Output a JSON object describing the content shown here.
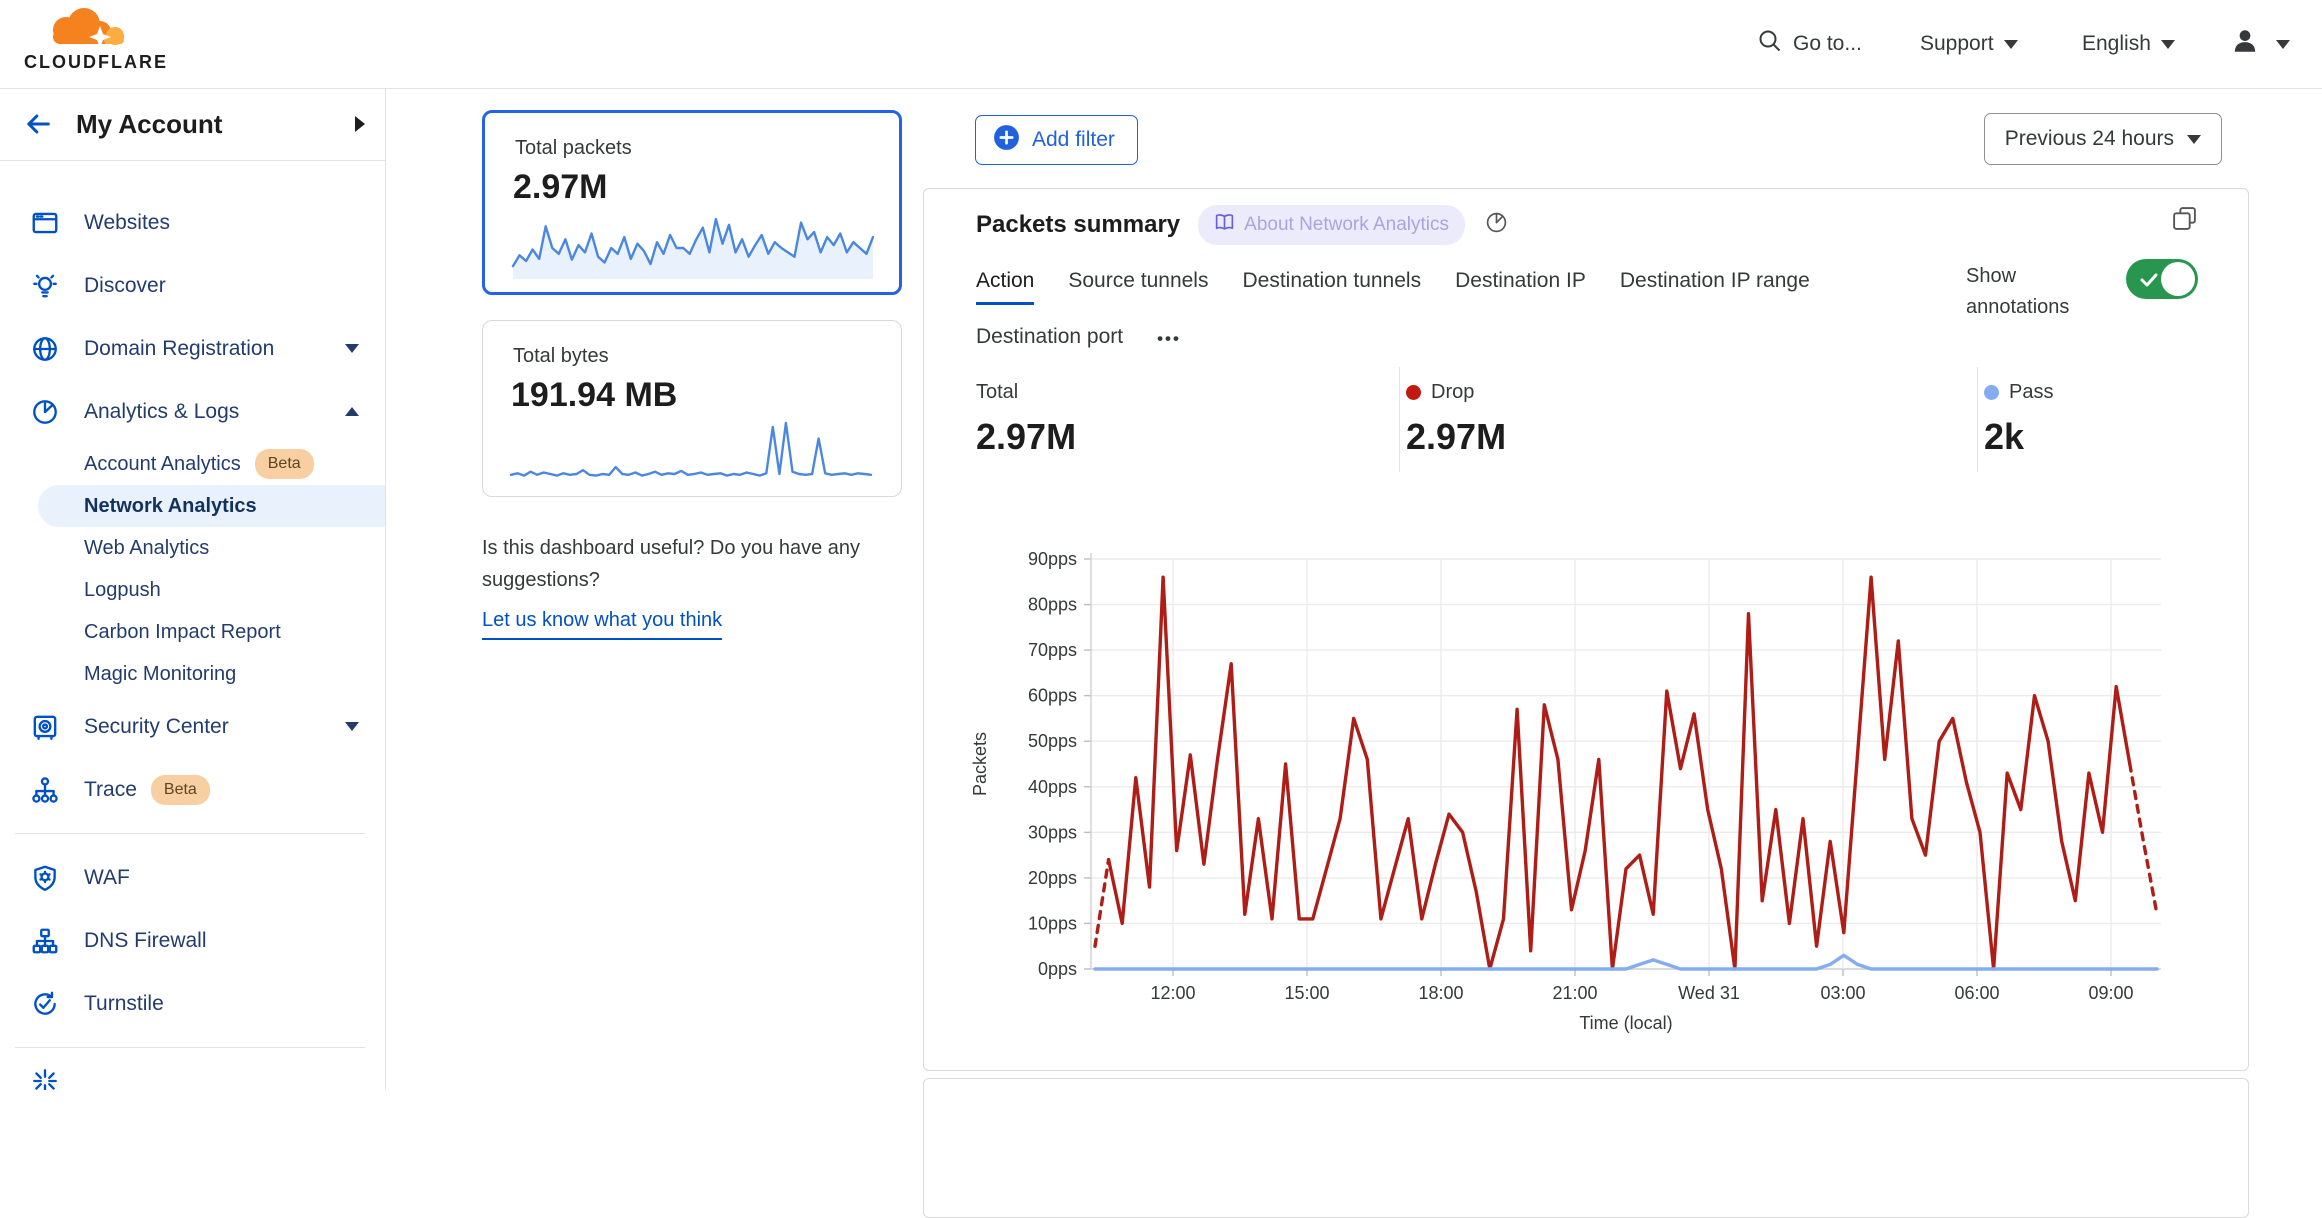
{
  "header": {
    "logo_text": "CLOUDFLARE",
    "goto": "Go to...",
    "support": "Support",
    "language": "English"
  },
  "sidebar": {
    "account_label": "My Account",
    "sections": [
      {
        "items": [
          {
            "label": "Websites",
            "icon": "browser"
          },
          {
            "label": "Discover",
            "icon": "lightbulb"
          },
          {
            "label": "Domain Registration",
            "icon": "globe",
            "caret": "down"
          },
          {
            "label": "Analytics & Logs",
            "icon": "pie",
            "caret": "up",
            "children": [
              {
                "label": "Account Analytics",
                "badge": "Beta"
              },
              {
                "label": "Network Analytics",
                "selected": true
              },
              {
                "label": "Web Analytics"
              },
              {
                "label": "Logpush"
              },
              {
                "label": "Carbon Impact Report"
              },
              {
                "label": "Magic Monitoring"
              }
            ]
          },
          {
            "label": "Security Center",
            "icon": "safe",
            "caret": "down"
          },
          {
            "label": "Trace",
            "icon": "tree",
            "badge": "Beta"
          }
        ]
      },
      {
        "items": [
          {
            "label": "WAF",
            "icon": "shield-gear"
          },
          {
            "label": "DNS Firewall",
            "icon": "nodes"
          },
          {
            "label": "Turnstile",
            "icon": "rotate-check"
          }
        ]
      }
    ]
  },
  "summary_cards": [
    {
      "label": "Total packets",
      "value": "2.97M",
      "selected": true,
      "sparkline": [
        15,
        30,
        22,
        38,
        25,
        70,
        40,
        32,
        52,
        24,
        44,
        34,
        60,
        28,
        20,
        40,
        32,
        55,
        25,
        46,
        36,
        18,
        48,
        32,
        58,
        40,
        40,
        32,
        52,
        68,
        34,
        80,
        46,
        72,
        34,
        52,
        28,
        44,
        58,
        32,
        48,
        40,
        34,
        28,
        75,
        52,
        62,
        34,
        55,
        44,
        60,
        34,
        48,
        40,
        32,
        55
      ]
    },
    {
      "label": "Total bytes",
      "value": "191.94 MB",
      "selected": false,
      "sparkline": [
        8,
        10,
        7,
        12,
        8,
        11,
        9,
        7,
        10,
        8,
        9,
        14,
        8,
        7,
        9,
        8,
        18,
        9,
        8,
        11,
        7,
        9,
        12,
        8,
        10,
        9,
        13,
        8,
        9,
        11,
        8,
        9,
        10,
        7,
        9,
        8,
        11,
        9,
        7,
        10,
        70,
        9,
        75,
        12,
        9,
        8,
        9,
        55,
        10,
        8,
        9,
        10,
        8,
        10,
        9,
        8
      ]
    }
  ],
  "feedback": {
    "question": "Is this dashboard useful? Do you have any suggestions?",
    "link": "Let us know what you think"
  },
  "toolbar": {
    "add_filter": "Add filter",
    "time_range": "Previous 24 hours"
  },
  "panel": {
    "title": "Packets summary",
    "badge": "About Network Analytics",
    "tabs": [
      "Action",
      "Source tunnels",
      "Destination tunnels",
      "Destination IP",
      "Destination IP range",
      "Destination port"
    ],
    "active_tab": "Action",
    "more_tabs": "•••",
    "show_annotations": "Show annotations",
    "annotations_on": true,
    "stats": [
      {
        "label": "Total",
        "value": "2.97M",
        "dot": null
      },
      {
        "label": "Drop",
        "value": "2.97M",
        "dot": "#C11A12"
      },
      {
        "label": "Pass",
        "value": "2k",
        "dot": "#84ADF1"
      }
    ],
    "chart_data": {
      "type": "line",
      "title": "Packets summary",
      "xlabel": "Time (local)",
      "ylabel": "Packets",
      "x_ticks": [
        "12:00",
        "15:00",
        "18:00",
        "21:00",
        "Wed 31",
        "03:00",
        "06:00",
        "09:00"
      ],
      "y_ticks": [
        "0pps",
        "10pps",
        "20pps",
        "30pps",
        "40pps",
        "50pps",
        "60pps",
        "70pps",
        "80pps",
        "90pps"
      ],
      "ylim": [
        0,
        90
      ],
      "grid": true,
      "series": [
        {
          "name": "Drop",
          "color": "#AE1E17",
          "dashed_ends": true,
          "values": [
            5,
            24,
            10,
            42,
            18,
            86,
            26,
            47,
            23,
            46,
            67,
            12,
            33,
            11,
            45,
            11,
            11,
            22,
            33,
            55,
            46,
            11,
            22,
            33,
            11,
            23,
            34,
            30,
            17,
            0,
            11,
            57,
            4,
            58,
            46,
            13,
            26,
            46,
            0,
            22,
            25,
            12,
            61,
            44,
            56,
            35,
            22,
            0,
            78,
            15,
            35,
            10,
            33,
            5,
            28,
            8,
            47,
            86,
            46,
            72,
            33,
            25,
            50,
            55,
            41,
            30,
            0,
            43,
            35,
            60,
            50,
            28,
            15,
            43,
            30,
            62,
            45,
            28,
            12
          ]
        },
        {
          "name": "Pass",
          "color": "#84ADF1",
          "dashed_ends": false,
          "values": [
            0,
            0,
            0,
            0,
            0,
            0,
            0,
            0,
            0,
            0,
            0,
            0,
            0,
            0,
            0,
            0,
            0,
            0,
            0,
            0,
            0,
            0,
            0,
            0,
            0,
            0,
            0,
            0,
            0,
            0,
            0,
            0,
            0,
            0,
            0,
            0,
            0,
            0,
            0,
            0,
            1,
            2,
            1,
            0,
            0,
            0,
            0,
            0,
            0,
            0,
            0,
            0,
            0,
            0,
            1,
            3,
            1,
            0,
            0,
            0,
            0,
            0,
            0,
            0,
            0,
            0,
            0,
            0,
            0,
            0,
            0,
            0,
            0,
            0,
            0,
            0,
            0,
            0,
            0
          ]
        }
      ]
    }
  },
  "colors": {
    "accent_blue": "#0051c3",
    "button_blue": "#2061DE",
    "selected_card_border": "#2463E9",
    "drop_red": "#AE1E17",
    "pass_blue": "#84ADF1",
    "toggle_green": "#28964F",
    "sparkline_blue": "#4A87E0",
    "beta_badge_bg": "#F8CFA0",
    "nav_text": "#223C6D"
  }
}
